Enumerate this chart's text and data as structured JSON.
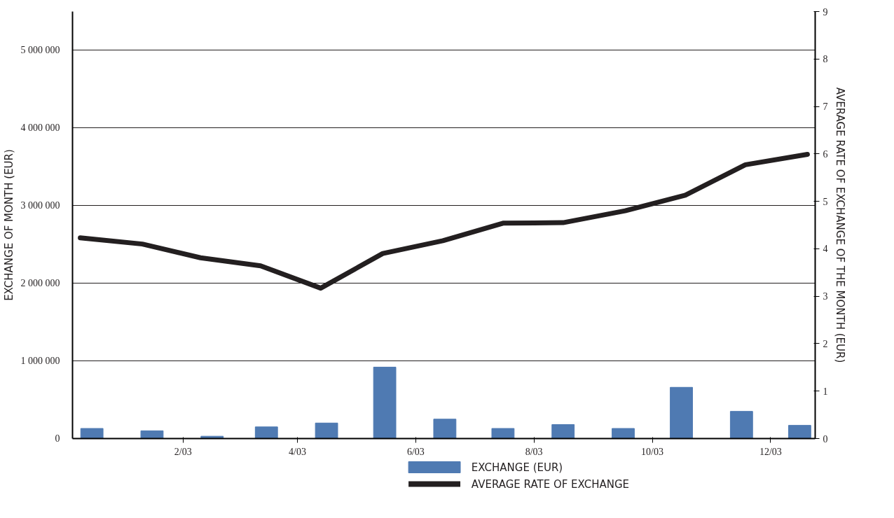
{
  "chart_data": {
    "type": "bar",
    "ylabel": "EXCHANGE OF MONTH (EUR)",
    "y2label": "AVERAGE RATE OF EXCHANGE OF THE MONTH (EUR)",
    "x": [
      "2002-12-16",
      "2003-01-16",
      "2003-02-16",
      "2003-03-16",
      "2003-04-16",
      "2003-05-16",
      "2003-06-16",
      "2003-07-16",
      "2003-08-16",
      "2003-09-16",
      "2003-10-16",
      "2003-11-16",
      "2003-12-16"
    ],
    "series": [
      {
        "name": "EXCHANGE (EUR)",
        "color": "#4f7ab2",
        "values": [
          130000,
          100000,
          30000,
          150000,
          200000,
          920000,
          250000,
          130000,
          180000,
          130000,
          660000,
          350000,
          170000
        ]
      },
      {
        "name": "AVERAGE RATE OF EXCHANGE",
        "type": "line",
        "axis": "y2",
        "color": "#231f20",
        "x": [
          "2002-12-10",
          "2003-01-11",
          "2003-02-10",
          "2003-03-13",
          "2003-04-13",
          "2003-05-15",
          "2003-06-15",
          "2003-07-16",
          "2003-08-16",
          "2003-09-17",
          "2003-10-18",
          "2003-11-18",
          "2003-12-20"
        ],
        "values": [
          4.23,
          4.1,
          3.81,
          3.64,
          3.17,
          3.9,
          4.17,
          4.54,
          4.55,
          4.8,
          5.13,
          5.77,
          5.99
        ]
      }
    ],
    "xlim": [
      "2002-12-06",
      "2003-12-24"
    ],
    "xticks": [
      {
        "value": "2003-02-01",
        "label": "2/03"
      },
      {
        "value": "2003-04-01",
        "label": "4/03"
      },
      {
        "value": "2003-06-01",
        "label": "6/03"
      },
      {
        "value": "2003-08-01",
        "label": "8/03"
      },
      {
        "value": "2003-10-01",
        "label": "10/03"
      },
      {
        "value": "2003-12-01",
        "label": "12/03"
      }
    ],
    "ylim": [
      0,
      5500000
    ],
    "yticks": [
      {
        "value": 0,
        "label": "0"
      },
      {
        "value": 1000000,
        "label": "1 000 000"
      },
      {
        "value": 2000000,
        "label": "2 000 000"
      },
      {
        "value": 3000000,
        "label": "3 000 000"
      },
      {
        "value": 4000000,
        "label": "4 000 000"
      },
      {
        "value": 5000000,
        "label": "5 000 000"
      }
    ],
    "y2lim": [
      0,
      9
    ],
    "y2ticks": [
      0,
      1,
      2,
      3,
      4,
      5,
      6,
      7,
      8,
      9
    ],
    "grid": "y",
    "legend": "bottom"
  }
}
